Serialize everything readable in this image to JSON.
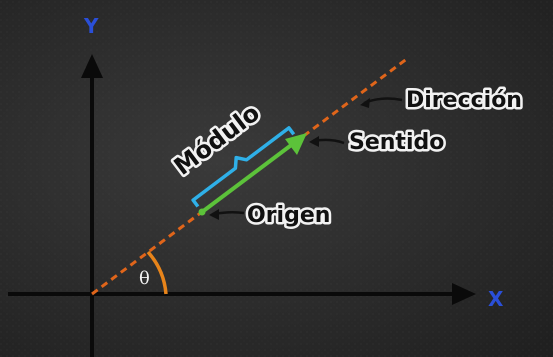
{
  "labels": {
    "direction": "Dirección",
    "sense": "Sentido",
    "magnitude": "Módulo",
    "origin": "Origen",
    "angle": "θ",
    "x_axis": "X",
    "y_axis": "Y"
  },
  "colors": {
    "axis": "#0a0a0a",
    "axis_label": "#2a4fd8",
    "direction_line": "#e0651a",
    "vector": "#5cc23a",
    "magnitude_bracket": "#2fb0e8",
    "angle_arc": "#e8841a",
    "pointer": "#111111"
  }
}
